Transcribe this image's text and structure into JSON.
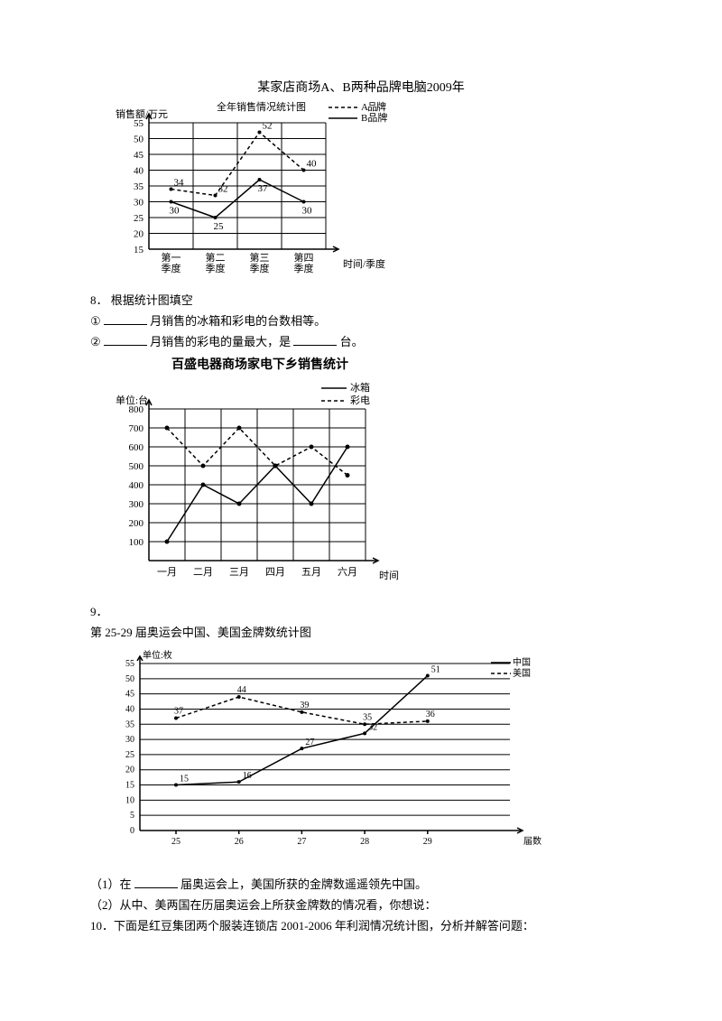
{
  "chart1": {
    "type": "line",
    "title_l1": "某家店商场A、B两种品牌电脑2009年",
    "title_l2": "全年销售情况统计图",
    "y_label": "销售额/万元",
    "x_label": "时间/季度",
    "legend_a": "A品牌",
    "legend_b": "B品牌",
    "y_ticks": [
      15,
      20,
      25,
      30,
      35,
      40,
      45,
      50,
      55
    ],
    "x_ticks": [
      "第一\n季度",
      "第二\n季度",
      "第三\n季度",
      "第四\n季度"
    ],
    "series_a": [
      34,
      32,
      52,
      40
    ],
    "series_b": [
      30,
      25,
      37,
      30
    ],
    "ylim": [
      15,
      55
    ],
    "colors": {
      "line": "#000",
      "bg": "#fff"
    }
  },
  "q8": {
    "num": "8．",
    "lead": "根据统计图填空",
    "l1_a": "①",
    "l1_b": "月销售的冰箱和彩电的台数相等。",
    "l2_a": "②",
    "l2_b": "月销售的彩电的量最大，是",
    "l2_c": "台。"
  },
  "chart2": {
    "type": "line",
    "title": "百盛电器商场家电下乡销售统计",
    "unit_label": "单位:台",
    "x_label": "时间",
    "legend_a": "冰箱",
    "legend_b": "彩电",
    "y_ticks": [
      100,
      200,
      300,
      400,
      500,
      600,
      700,
      800
    ],
    "x_ticks": [
      "一月",
      "二月",
      "三月",
      "四月",
      "五月",
      "六月"
    ],
    "series_fridge": [
      100,
      400,
      300,
      500,
      300,
      600
    ],
    "series_tv": [
      700,
      500,
      700,
      500,
      600,
      450
    ],
    "ylim": [
      0,
      800
    ],
    "colors": {
      "line": "#000",
      "bg": "#fff"
    }
  },
  "q9": {
    "num": "9．",
    "title": "第 25-29 届奥运会中国、美国金牌数统计图",
    "l1_a": "（1）在",
    "l1_b": "届奥运会上，美国所获的金牌数遥遥领先中国。",
    "l2": "（2）从中、美两国在历届奥运会上所获金牌数的情况看，你想说："
  },
  "chart3": {
    "type": "line",
    "unit_label": "单位:枚",
    "x_label": "届数",
    "legend_cn": "中国",
    "legend_us": "美国",
    "y_ticks": [
      0,
      5,
      10,
      15,
      20,
      25,
      30,
      35,
      40,
      45,
      50,
      55
    ],
    "x_ticks": [
      "25",
      "26",
      "27",
      "28",
      "29"
    ],
    "series_cn": [
      15,
      16,
      27,
      32,
      51
    ],
    "series_us": [
      37,
      44,
      39,
      35,
      36
    ],
    "pt_labels_cn": [
      "15",
      "16",
      "27",
      "32",
      "51"
    ],
    "pt_labels_us": [
      "37",
      "44",
      "39",
      "35",
      "36"
    ],
    "ylim": [
      0,
      55
    ],
    "colors": {
      "line": "#000",
      "bg": "#fff"
    }
  },
  "q10": {
    "num": "10．",
    "text": "下面是红豆集团两个服装连锁店 2001-2006 年利润情况统计图，分析并解答问题："
  }
}
